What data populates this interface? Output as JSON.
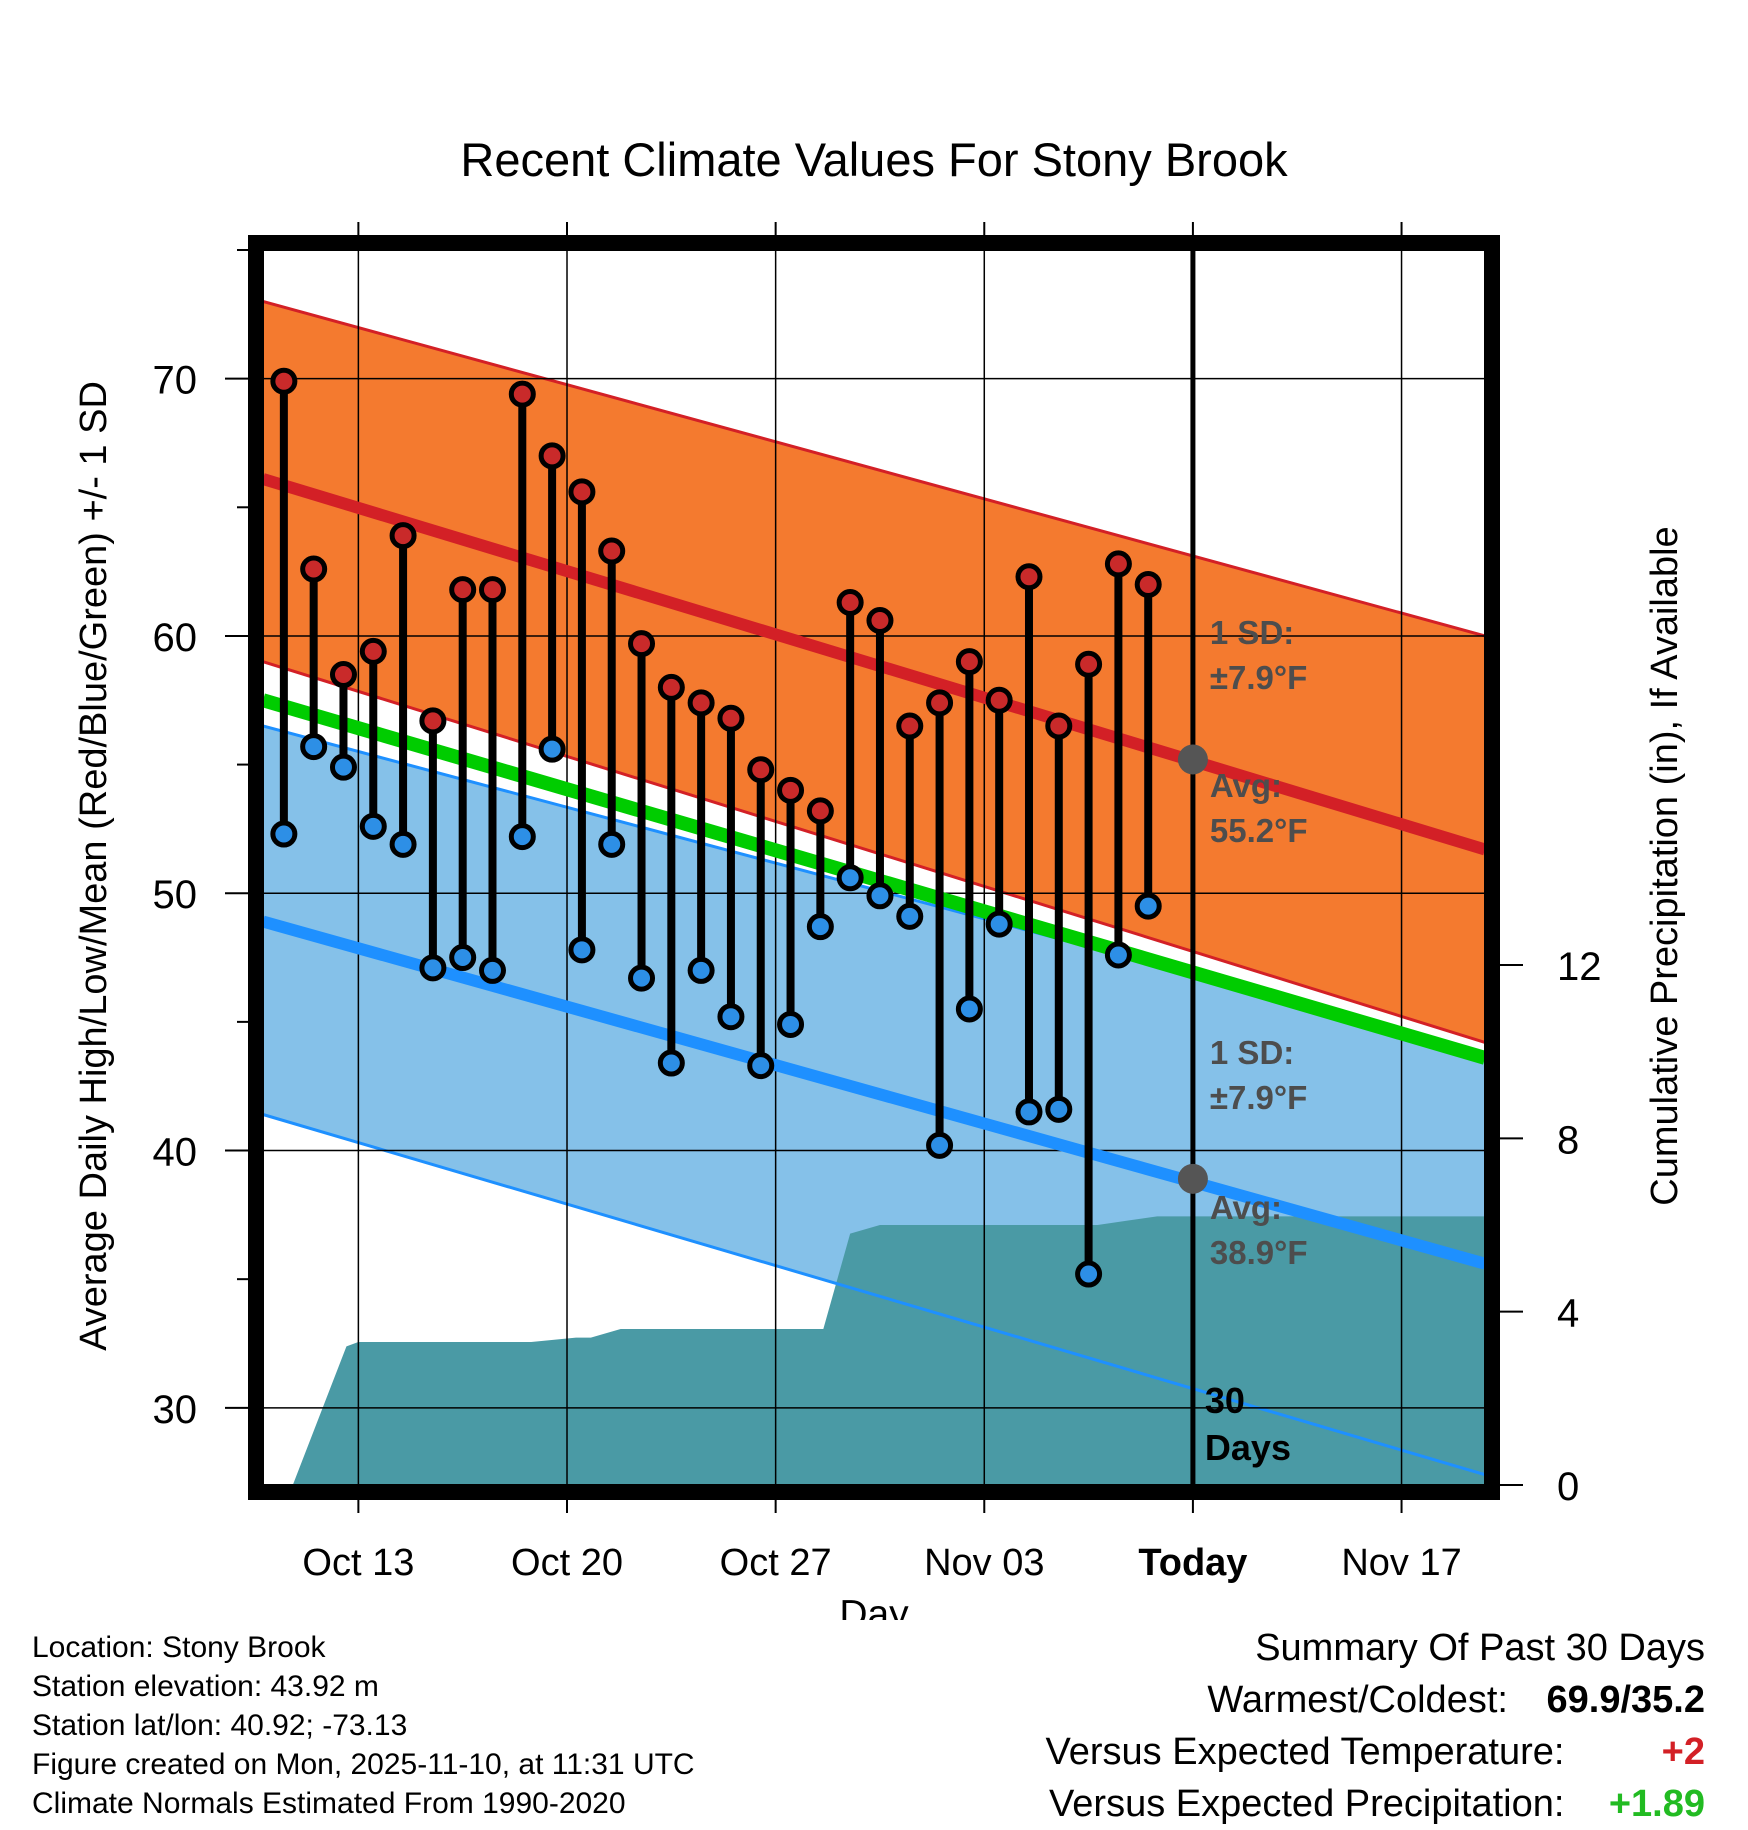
{
  "chart_data": {
    "type": "line",
    "title": "Recent Climate Values For Stony Brook",
    "xlabel": "Day",
    "ylabel": "Average Daily High/Low/Mean (Red/Blue/Green) +/- 1 SD",
    "y2label": "Cumulative Precipitation (in), If Available",
    "xtick_labels": [
      "Oct 13",
      "Oct 20",
      "Oct 27",
      "Nov 03",
      "Today",
      "Nov 17"
    ],
    "xtick_days": [
      3.2,
      10.2,
      17.2,
      24.2,
      31.2,
      38.2
    ],
    "xlim": [
      0,
      41
    ],
    "ylim": [
      27,
      75
    ],
    "yticks": [
      30,
      40,
      50,
      60,
      70
    ],
    "y2lim": [
      0,
      28.5
    ],
    "y2ticks": [
      0,
      4,
      8,
      12
    ],
    "today_day": 31.2,
    "normals": {
      "high_avg": [
        66.1,
        51.7
      ],
      "high_sd_upper": [
        73.0,
        60.0
      ],
      "high_sd_lower": [
        59.0,
        44.2
      ],
      "low_avg": [
        48.9,
        35.6
      ],
      "low_sd_upper": [
        56.5,
        43.8
      ],
      "low_sd_lower": [
        41.4,
        27.4
      ],
      "mean": [
        57.5,
        43.6
      ]
    },
    "daily": {
      "days": [
        0.7,
        1.7,
        2.7,
        3.7,
        4.7,
        5.7,
        6.7,
        7.7,
        8.7,
        9.7,
        10.7,
        11.7,
        12.7,
        13.7,
        14.7,
        15.7,
        16.7,
        17.7,
        18.7,
        19.7,
        20.7,
        21.7,
        22.7,
        23.7,
        24.7,
        25.7,
        26.7,
        27.7,
        28.7,
        29.7
      ],
      "highs": [
        69.9,
        62.6,
        58.5,
        59.4,
        63.9,
        56.7,
        61.8,
        61.8,
        69.4,
        67.0,
        65.6,
        63.3,
        59.7,
        58.0,
        57.4,
        56.8,
        54.8,
        54.0,
        53.2,
        61.3,
        60.6,
        56.5,
        57.4,
        59.0,
        57.5,
        62.3,
        56.5,
        58.9,
        62.8,
        62.0
      ],
      "lows": [
        52.3,
        55.7,
        54.9,
        52.6,
        51.9,
        47.1,
        47.5,
        47.0,
        52.2,
        55.6,
        47.8,
        51.9,
        46.7,
        43.4,
        47.0,
        45.2,
        43.3,
        44.9,
        48.7,
        50.6,
        49.9,
        49.1,
        40.2,
        45.5,
        48.8,
        41.5,
        41.6,
        35.2,
        47.6,
        49.5
      ]
    },
    "precip": {
      "days": [
        0.0,
        1.0,
        2.8,
        3.2,
        9.0,
        10.5,
        11.0,
        12.0,
        16.0,
        18.0,
        18.8,
        19.7,
        20.7,
        24.0,
        28.0,
        29.0,
        30.0,
        31.2,
        32.0,
        41.0
      ],
      "values": [
        0.0,
        0.0,
        3.2,
        3.3,
        3.3,
        3.4,
        3.4,
        3.6,
        3.6,
        3.6,
        3.6,
        5.8,
        6.0,
        6.0,
        6.0,
        6.1,
        6.2,
        6.2,
        6.2,
        6.2
      ]
    },
    "annotations": {
      "high_sd": "1 SD:",
      "high_sd_value": "±7.9°F",
      "high_avg_label": "Avg:",
      "high_avg_value": "55.2°F",
      "high_avg_point": 55.2,
      "low_sd": "1 SD:",
      "low_sd_value": "±7.9°F",
      "low_avg_label": "Avg:",
      "low_avg_value": "38.9°F",
      "low_avg_point": 38.9,
      "window_number": "30",
      "window_unit": "Days"
    },
    "colors": {
      "high_band": "#f47a2f",
      "high_line": "#d32026",
      "low_band": "#85c1e9",
      "low_line": "#1e90ff",
      "mean_line": "#00cc00",
      "precip": "#4a9aa5",
      "high_marker": "#c92a2a",
      "low_marker": "#2d8fe6",
      "annotation": "#4d4d4d"
    }
  },
  "footer": {
    "location": "Location: Stony Brook",
    "elevation": "Station elevation: 43.92 m",
    "latlon": "Station lat/lon: 40.92; -73.13",
    "created": "Figure created on Mon, 2025-11-10, at 11:31 UTC",
    "normals": "Climate Normals Estimated From 1990-2020"
  },
  "summary": {
    "title": "Summary Of Past 30 Days",
    "warmest_coldest_label": "Warmest/Coldest:",
    "warmest_coldest_value": "69.9/35.2",
    "temp_label": "Versus Expected Temperature:",
    "temp_value": "+2",
    "temp_color": "#d32026",
    "precip_label": "Versus Expected Precipitation:",
    "precip_value": "+1.89",
    "precip_color": "#22bb22"
  }
}
